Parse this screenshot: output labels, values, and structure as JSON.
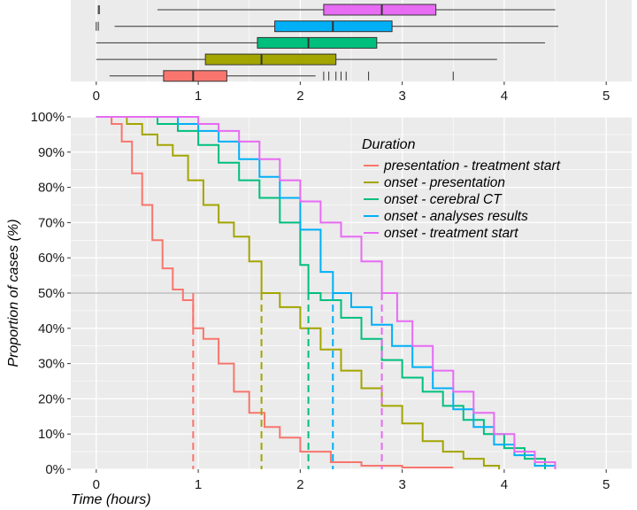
{
  "chart_data": [
    {
      "type": "boxplot",
      "xlim": [
        -0.25,
        5.25
      ],
      "x_ticks": [
        0,
        1,
        2,
        3,
        4,
        5
      ],
      "grid": true,
      "boxes": [
        {
          "series": "onset - treatment start",
          "color": "#E76BF3",
          "whisker_low": 0.6,
          "q1": 2.23,
          "median": 2.8,
          "q3": 3.33,
          "whisker_high": 4.5,
          "outliers": [
            0.02,
            0.03
          ]
        },
        {
          "series": "onset - analyses results",
          "color": "#00B0F6",
          "whisker_low": 0.18,
          "q1": 1.75,
          "median": 2.32,
          "q3": 2.9,
          "whisker_high": 4.53,
          "outliers": [
            0.0,
            0.02
          ]
        },
        {
          "series": "onset - cerebral CT",
          "color": "#00BF7D",
          "whisker_low": 0.0,
          "q1": 1.58,
          "median": 2.08,
          "q3": 2.75,
          "whisker_high": 4.4,
          "outliers": []
        },
        {
          "series": "onset - presentation",
          "color": "#A3A500",
          "whisker_low": 0.0,
          "q1": 1.07,
          "median": 1.62,
          "q3": 2.35,
          "whisker_high": 3.93,
          "outliers": []
        },
        {
          "series": "presentation - treatment start",
          "color": "#F8766D",
          "whisker_low": 0.13,
          "q1": 0.66,
          "median": 0.95,
          "q3": 1.28,
          "whisker_high": 2.15,
          "outliers": [
            2.23,
            2.28,
            2.35,
            2.4,
            2.45,
            2.67,
            3.5
          ]
        }
      ]
    },
    {
      "type": "line",
      "step": true,
      "xlabel": "Time (hours)",
      "ylabel": "Proportion of cases (%)",
      "xlim": [
        -0.25,
        5.25
      ],
      "ylim": [
        0,
        100
      ],
      "x_ticks": [
        0,
        1,
        2,
        3,
        4,
        5
      ],
      "y_ticks": [
        0,
        10,
        20,
        30,
        40,
        50,
        60,
        70,
        80,
        90,
        100
      ],
      "y_tick_labels": [
        "0%",
        "10%",
        "20%",
        "30%",
        "40%",
        "50%",
        "60%",
        "70%",
        "80%",
        "90%",
        "100%"
      ],
      "reference_line_y": 50,
      "grid": true,
      "legend": {
        "title": "Duration",
        "position": "top-right"
      },
      "series": [
        {
          "name": "presentation - treatment start",
          "color": "#F8766D",
          "median": 0.95,
          "x": [
            0,
            0.15,
            0.25,
            0.35,
            0.45,
            0.55,
            0.65,
            0.75,
            0.85,
            0.95,
            1.05,
            1.2,
            1.35,
            1.5,
            1.65,
            1.8,
            2.0,
            2.3,
            2.6,
            3.0,
            3.5
          ],
          "y": [
            100,
            98,
            93,
            84,
            75,
            65,
            57,
            51,
            48,
            40,
            37,
            30,
            22,
            16,
            12,
            9,
            5,
            2,
            1,
            0.5,
            0.5
          ]
        },
        {
          "name": "onset - presentation",
          "color": "#A3A500",
          "median": 1.62,
          "x": [
            0,
            0.3,
            0.45,
            0.6,
            0.75,
            0.9,
            1.05,
            1.2,
            1.35,
            1.5,
            1.62,
            1.8,
            2.0,
            2.2,
            2.4,
            2.6,
            2.8,
            3.0,
            3.2,
            3.4,
            3.6,
            3.8,
            3.95
          ],
          "y": [
            100,
            98,
            95,
            92,
            89,
            82,
            75,
            70,
            66,
            59,
            50,
            46,
            40,
            34,
            28,
            23,
            18,
            13,
            8,
            5,
            3,
            1,
            0
          ]
        },
        {
          "name": "onset - cerebral CT",
          "color": "#00BF7D",
          "median": 2.08,
          "x": [
            0,
            0.6,
            0.8,
            1.0,
            1.2,
            1.4,
            1.6,
            1.8,
            2.0,
            2.08,
            2.2,
            2.4,
            2.6,
            2.8,
            3.0,
            3.2,
            3.4,
            3.6,
            3.8,
            4.0,
            4.2,
            4.4
          ],
          "y": [
            100,
            98,
            96,
            92,
            87,
            82,
            77,
            70,
            58,
            50,
            48,
            43,
            37,
            31,
            26,
            22,
            18,
            14,
            10,
            6,
            3,
            0
          ]
        },
        {
          "name": "onset - analyses results",
          "color": "#00B0F6",
          "median": 2.32,
          "x": [
            0,
            0.8,
            1.0,
            1.2,
            1.4,
            1.6,
            1.8,
            2.0,
            2.2,
            2.32,
            2.5,
            2.7,
            2.9,
            3.1,
            3.3,
            3.5,
            3.7,
            3.9,
            4.1,
            4.3,
            4.5
          ],
          "y": [
            100,
            98,
            96,
            93,
            88,
            83,
            77,
            68,
            56,
            50,
            46,
            41,
            35,
            29,
            23,
            17,
            12,
            7,
            4,
            1,
            0
          ]
        },
        {
          "name": "onset - treatment start",
          "color": "#E76BF3",
          "median": 2.8,
          "x": [
            0,
            1.0,
            1.2,
            1.4,
            1.6,
            1.8,
            2.0,
            2.2,
            2.4,
            2.6,
            2.8,
            2.95,
            3.1,
            3.3,
            3.5,
            3.7,
            3.9,
            4.1,
            4.3,
            4.5
          ],
          "y": [
            100,
            98,
            96,
            93,
            88,
            82,
            76,
            70,
            66,
            59,
            50,
            42,
            35,
            28,
            22,
            16,
            10,
            5,
            2,
            0
          ]
        }
      ]
    }
  ]
}
